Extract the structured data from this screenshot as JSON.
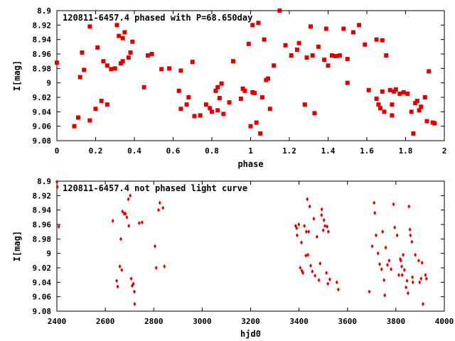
{
  "chart_data": [
    {
      "type": "scatter",
      "title": "120811-6457.4 phased with P=68.650day",
      "xlabel": "phase",
      "ylabel": "I[mag]",
      "xlim": [
        0,
        2
      ],
      "ylim": [
        9.08,
        8.9
      ],
      "y_inverted": true,
      "grid": false,
      "xticks": [
        "0",
        "0.2",
        "0.4",
        "0.6",
        "0.8",
        "1",
        "1.2",
        "1.4",
        "1.6",
        "1.8",
        "2"
      ],
      "yticks": [
        "8.9",
        "8.92",
        "8.94",
        "8.96",
        "8.98",
        "9",
        "9.02",
        "9.04",
        "9.06",
        "9.08"
      ],
      "marker_color": "#e00000",
      "series": [
        {
          "points": [
            [
              0.0,
              8.972
            ],
            [
              0.09,
              9.06
            ],
            [
              0.11,
              9.048
            ],
            [
              0.12,
              8.992
            ],
            [
              0.13,
              8.958
            ],
            [
              0.14,
              8.982
            ],
            [
              0.17,
              8.922
            ],
            [
              0.17,
              9.052
            ],
            [
              0.2,
              9.036
            ],
            [
              0.21,
              8.951
            ],
            [
              0.23,
              9.025
            ],
            [
              0.24,
              8.97
            ],
            [
              0.26,
              9.03
            ],
            [
              0.26,
              8.976
            ],
            [
              0.28,
              8.981
            ],
            [
              0.3,
              8.98
            ],
            [
              0.31,
              8.92
            ],
            [
              0.32,
              8.935
            ],
            [
              0.33,
              8.973
            ],
            [
              0.34,
              8.97
            ],
            [
              0.34,
              8.938
            ],
            [
              0.35,
              8.93
            ],
            [
              0.37,
              8.965
            ],
            [
              0.38,
              8.958
            ],
            [
              0.39,
              8.943
            ],
            [
              0.45,
              9.006
            ],
            [
              0.47,
              8.962
            ],
            [
              0.49,
              8.96
            ],
            [
              0.54,
              8.981
            ],
            [
              0.58,
              8.98
            ],
            [
              0.63,
              9.011
            ],
            [
              0.64,
              8.983
            ],
            [
              0.64,
              9.036
            ],
            [
              0.67,
              9.03
            ],
            [
              0.68,
              9.02
            ],
            [
              0.7,
              8.971
            ],
            [
              0.71,
              9.046
            ],
            [
              0.74,
              9.045
            ],
            [
              0.77,
              9.03
            ],
            [
              0.79,
              9.035
            ],
            [
              0.8,
              9.04
            ],
            [
              0.82,
              9.011
            ],
            [
              0.83,
              9.006
            ],
            [
              0.83,
              9.038
            ],
            [
              0.84,
              9.021
            ],
            [
              0.85,
              9.001
            ],
            [
              0.86,
              9.043
            ],
            [
              0.89,
              9.027
            ],
            [
              0.91,
              8.97
            ],
            [
              0.95,
              9.022
            ],
            [
              0.96,
              9.008
            ],
            [
              0.97,
              9.011
            ],
            [
              0.99,
              8.946
            ],
            [
              1.0,
              9.06
            ],
            [
              1.01,
              9.013
            ],
            [
              1.01,
              8.92
            ],
            [
              1.02,
              9.014
            ],
            [
              1.03,
              9.055
            ],
            [
              1.04,
              8.917
            ],
            [
              1.05,
              9.07
            ],
            [
              1.06,
              9.02
            ],
            [
              1.07,
              8.94
            ],
            [
              1.08,
              8.996
            ],
            [
              1.09,
              8.994
            ],
            [
              1.1,
              9.036
            ],
            [
              1.12,
              8.976
            ],
            [
              1.15,
              8.9
            ],
            [
              1.18,
              8.948
            ],
            [
              1.21,
              8.962
            ],
            [
              1.24,
              8.954
            ],
            [
              1.25,
              8.945
            ],
            [
              1.28,
              9.03
            ],
            [
              1.29,
              8.965
            ],
            [
              1.31,
              8.922
            ],
            [
              1.32,
              8.962
            ],
            [
              1.33,
              9.042
            ],
            [
              1.35,
              8.95
            ],
            [
              1.38,
              8.968
            ],
            [
              1.39,
              8.925
            ],
            [
              1.4,
              8.976
            ],
            [
              1.42,
              8.962
            ],
            [
              1.44,
              8.963
            ],
            [
              1.46,
              8.962
            ],
            [
              1.48,
              8.925
            ],
            [
              1.5,
              8.967
            ],
            [
              1.5,
              9.0
            ],
            [
              1.53,
              8.93
            ],
            [
              1.56,
              8.92
            ],
            [
              1.59,
              8.947
            ],
            [
              1.61,
              9.01
            ],
            [
              1.65,
              8.94
            ],
            [
              1.65,
              9.022
            ],
            [
              1.66,
              9.03
            ],
            [
              1.67,
              9.035
            ],
            [
              1.68,
              9.012
            ],
            [
              1.68,
              8.941
            ],
            [
              1.69,
              9.04
            ],
            [
              1.7,
              8.962
            ],
            [
              1.72,
              9.01
            ],
            [
              1.73,
              9.03
            ],
            [
              1.73,
              9.045
            ],
            [
              1.74,
              9.012
            ],
            [
              1.75,
              9.009
            ],
            [
              1.77,
              9.015
            ],
            [
              1.79,
              9.013
            ],
            [
              1.81,
              9.015
            ],
            [
              1.83,
              9.04
            ],
            [
              1.84,
              9.07
            ],
            [
              1.85,
              9.028
            ],
            [
              1.86,
              9.025
            ],
            [
              1.87,
              9.038
            ],
            [
              1.88,
              9.033
            ],
            [
              1.9,
              9.02
            ],
            [
              1.91,
              9.053
            ],
            [
              1.92,
              8.984
            ],
            [
              1.94,
              9.055
            ],
            [
              1.95,
              9.056
            ]
          ]
        }
      ]
    },
    {
      "type": "scatter",
      "title": "120811-6457.4 not phased light curve",
      "xlabel": "hjd0",
      "ylabel": "I[mag]",
      "xlim": [
        2400,
        4000
      ],
      "ylim": [
        9.08,
        8.9
      ],
      "y_inverted": true,
      "grid": false,
      "xticks": [
        "2400",
        "2600",
        "2800",
        "3000",
        "3200",
        "3400",
        "3600",
        "3800",
        "4000"
      ],
      "yticks": [
        "8.9",
        "8.92",
        "8.94",
        "8.96",
        "8.98",
        "9",
        "9.02",
        "9.04",
        "9.06",
        "9.08"
      ],
      "marker_color": "#e00000",
      "series": [
        {
          "points": [
            [
              2400,
              8.901
            ],
            [
              2402,
              8.908
            ],
            [
              2408,
              8.963
            ],
            [
              2631,
              8.955
            ],
            [
              2647,
              9.038
            ],
            [
              2651,
              9.046
            ],
            [
              2660,
              9.018
            ],
            [
              2664,
              8.98
            ],
            [
              2668,
              9.023
            ],
            [
              2671,
              8.942
            ],
            [
              2678,
              8.945
            ],
            [
              2683,
              8.945
            ],
            [
              2689,
              8.95
            ],
            [
              2695,
              8.925
            ],
            [
              2697,
              8.962
            ],
            [
              2703,
              8.92
            ],
            [
              2707,
              9.035
            ],
            [
              2711,
              9.045
            ],
            [
              2716,
              9.042
            ],
            [
              2720,
              9.053
            ],
            [
              2721,
              9.07
            ],
            [
              2740,
              8.958
            ],
            [
              2752,
              8.957
            ],
            [
              2805,
              8.99
            ],
            [
              2810,
              9.02
            ],
            [
              2820,
              8.94
            ],
            [
              2825,
              8.93
            ],
            [
              2838,
              8.937
            ],
            [
              2844,
              9.018
            ],
            [
              3386,
              8.962
            ],
            [
              3390,
              8.965
            ],
            [
              3392,
              8.975
            ],
            [
              3399,
              8.96
            ],
            [
              3405,
              9.02
            ],
            [
              3410,
              8.985
            ],
            [
              3412,
              9.024
            ],
            [
              3416,
              9.027
            ],
            [
              3422,
              8.962
            ],
            [
              3428,
              9.003
            ],
            [
              3430,
              8.97
            ],
            [
              3434,
              8.925
            ],
            [
              3437,
              9.002
            ],
            [
              3440,
              8.97
            ],
            [
              3444,
              8.935
            ],
            [
              3448,
              9.017
            ],
            [
              3455,
              9.025
            ],
            [
              3461,
              8.952
            ],
            [
              3466,
              9.031
            ],
            [
              3474,
              8.977
            ],
            [
              3482,
              9.037
            ],
            [
              3487,
              9.014
            ],
            [
              3493,
              8.947
            ],
            [
              3494,
              8.939
            ],
            [
              3500,
              8.968
            ],
            [
              3503,
              8.954
            ],
            [
              3507,
              8.962
            ],
            [
              3513,
              9.027
            ],
            [
              3516,
              8.963
            ],
            [
              3519,
              9.042
            ],
            [
              3521,
              8.97
            ],
            [
              3527,
              9.036
            ],
            [
              3556,
              9.04
            ],
            [
              3562,
              9.05
            ],
            [
              3690,
              9.053
            ],
            [
              3702,
              8.99
            ],
            [
              3710,
              8.93
            ],
            [
              3713,
              8.944
            ],
            [
              3718,
              8.975
            ],
            [
              3726,
              9.0
            ],
            [
              3733,
              9.015
            ],
            [
              3741,
              9.022
            ],
            [
              3745,
              8.97
            ],
            [
              3751,
              9.037
            ],
            [
              3754,
              9.058
            ],
            [
              3758,
              8.992
            ],
            [
              3765,
              9.016
            ],
            [
              3772,
              9.01
            ],
            [
              3780,
              9.022
            ],
            [
              3790,
              8.932
            ],
            [
              3795,
              8.964
            ],
            [
              3805,
              8.975
            ],
            [
              3812,
              9.03
            ],
            [
              3818,
              9.008
            ],
            [
              3820,
              9.01
            ],
            [
              3824,
              9.018
            ],
            [
              3826,
              9.03
            ],
            [
              3830,
              9.002
            ],
            [
              3835,
              9.023
            ],
            [
              3842,
              9.047
            ],
            [
              3846,
              9.038
            ],
            [
              3850,
              9.055
            ],
            [
              3854,
              8.935
            ],
            [
              3858,
              8.967
            ],
            [
              3860,
              8.975
            ],
            [
              3866,
              8.984
            ],
            [
              3868,
              9.033
            ],
            [
              3870,
              9.04
            ],
            [
              3880,
              9.002
            ],
            [
              3894,
              9.01
            ],
            [
              3898,
              9.04
            ],
            [
              3904,
              9.035
            ],
            [
              3908,
              9.013
            ],
            [
              3912,
              9.07
            ],
            [
              3922,
              9.03
            ],
            [
              3926,
              9.035
            ]
          ]
        }
      ]
    }
  ]
}
